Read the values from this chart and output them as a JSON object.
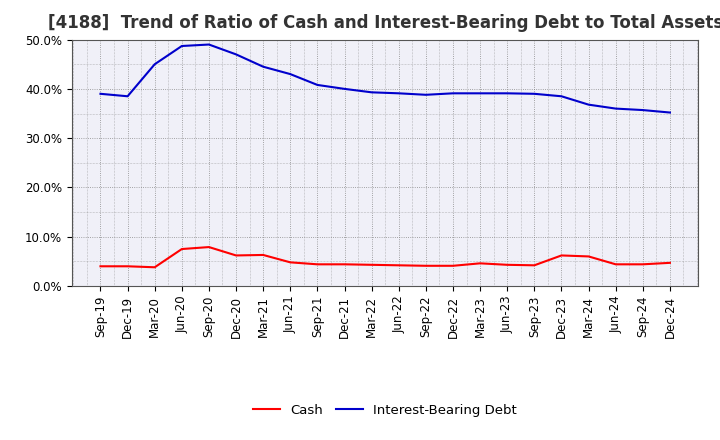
{
  "title": "[4188]  Trend of Ratio of Cash and Interest-Bearing Debt to Total Assets",
  "x_labels": [
    "Sep-19",
    "Dec-19",
    "Mar-20",
    "Jun-20",
    "Sep-20",
    "Dec-20",
    "Mar-21",
    "Jun-21",
    "Sep-21",
    "Dec-21",
    "Mar-22",
    "Jun-22",
    "Sep-22",
    "Dec-22",
    "Mar-23",
    "Jun-23",
    "Sep-23",
    "Dec-23",
    "Mar-24",
    "Jun-24",
    "Sep-24",
    "Dec-24"
  ],
  "cash": [
    0.04,
    0.04,
    0.038,
    0.075,
    0.079,
    0.062,
    0.063,
    0.048,
    0.044,
    0.044,
    0.043,
    0.042,
    0.041,
    0.041,
    0.046,
    0.043,
    0.042,
    0.062,
    0.06,
    0.044,
    0.044,
    0.047
  ],
  "debt": [
    0.39,
    0.385,
    0.45,
    0.487,
    0.49,
    0.47,
    0.445,
    0.43,
    0.408,
    0.4,
    0.393,
    0.391,
    0.388,
    0.391,
    0.391,
    0.391,
    0.39,
    0.385,
    0.368,
    0.36,
    0.357,
    0.352
  ],
  "cash_color": "#ff0000",
  "debt_color": "#0000cc",
  "ylim": [
    0.0,
    0.5
  ],
  "yticks": [
    0.0,
    0.1,
    0.2,
    0.3,
    0.4,
    0.5
  ],
  "background_color": "#ffffff",
  "plot_bg_color": "#f0f0f8",
  "grid_color": "#888888",
  "legend_cash": "Cash",
  "legend_debt": "Interest-Bearing Debt",
  "title_fontsize": 12,
  "axis_fontsize": 8.5,
  "legend_fontsize": 9.5
}
